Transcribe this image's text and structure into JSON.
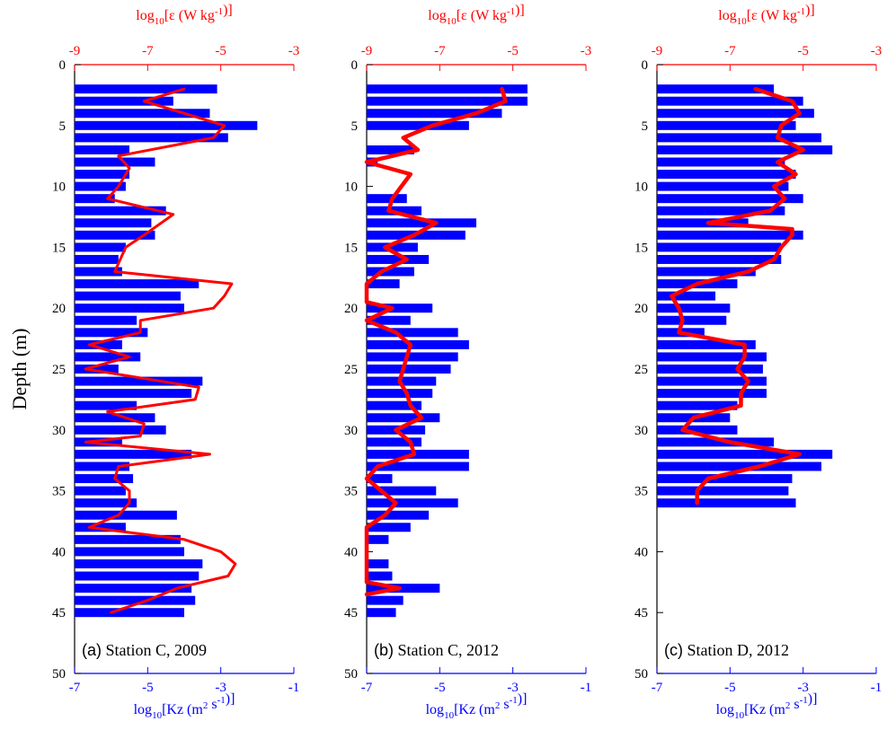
{
  "colors": {
    "kz_bar": "#0000ff",
    "eps_line": "#ff0000",
    "axis": "#000000"
  },
  "chart_data": [
    {
      "type": "bar",
      "panel_label": "(a) Station C, 2009",
      "ylabel": "Depth (m)",
      "ylim": [
        50,
        0
      ],
      "yticks": [
        0,
        5,
        10,
        15,
        20,
        25,
        30,
        35,
        40,
        45,
        50
      ],
      "xlabel_bottom": "log10[Kz (m2 s-1)]",
      "xlabel_top": "log10[ε (W kg-1)]",
      "xlim_bottom": [
        -7,
        -1
      ],
      "xlim_top": [
        -9,
        -3
      ],
      "xticks_bottom": [
        -7,
        -5,
        -3,
        -1
      ],
      "xticks_top": [
        -9,
        -7,
        -5,
        -3
      ],
      "series": [
        {
          "name": "Kz",
          "axis": "bottom",
          "style": "horizontal-bar",
          "depth": [
            2,
            3,
            4,
            5,
            6,
            7,
            8,
            9,
            10,
            11,
            12,
            13,
            14,
            15,
            16,
            17,
            18,
            19,
            20,
            21,
            22,
            23,
            24,
            25,
            26,
            27,
            28,
            29,
            30,
            31,
            32,
            33,
            34,
            35,
            36,
            37,
            38,
            39,
            40,
            41,
            42,
            43,
            44,
            45
          ],
          "values": [
            -3.1,
            -4.3,
            -3.3,
            -2.0,
            -2.8,
            -5.5,
            -4.8,
            -5.5,
            -5.6,
            -5.9,
            -4.5,
            -4.9,
            -4.8,
            -5.6,
            -5.8,
            -5.7,
            -3.6,
            -4.1,
            -4.0,
            -5.3,
            -5.0,
            -5.7,
            -5.2,
            -5.8,
            -3.5,
            -3.8,
            -5.3,
            -4.8,
            -4.5,
            -5.7,
            -3.8,
            -5.5,
            -5.4,
            -5.6,
            -5.3,
            -4.2,
            -5.6,
            -4.1,
            -4.0,
            -3.5,
            -3.6,
            -3.8,
            -3.7,
            -4.0
          ]
        },
        {
          "name": "ε",
          "axis": "top",
          "style": "line",
          "depth": [
            2,
            3,
            5,
            6,
            7.5,
            8.5,
            10,
            11,
            12.3,
            14,
            15,
            17,
            18,
            19,
            20,
            21,
            22,
            23,
            24,
            25,
            26.5,
            27.5,
            28.5,
            29.5,
            30.5,
            31,
            32,
            33,
            34,
            35,
            36,
            37,
            38,
            39,
            40,
            41,
            42,
            43,
            44,
            45
          ],
          "values": [
            -6.0,
            -7.1,
            -4.9,
            -5.2,
            -7.8,
            -7.5,
            -7.8,
            -8.1,
            -6.3,
            -7.1,
            -7.6,
            -7.9,
            -4.7,
            -4.9,
            -5.2,
            -7.2,
            -7.2,
            -8.6,
            -7.5,
            -8.7,
            -5.6,
            -5.7,
            -8.1,
            -7.1,
            -7.2,
            -8.7,
            -5.3,
            -7.8,
            -7.9,
            -7.5,
            -7.5,
            -7.8,
            -8.6,
            -6.0,
            -5.0,
            -4.6,
            -4.8,
            -6.2,
            -7.0,
            -8.0
          ]
        }
      ]
    },
    {
      "type": "bar",
      "panel_label": "(b) Station C, 2012",
      "ylim": [
        50,
        0
      ],
      "yticks": [
        0,
        5,
        10,
        15,
        20,
        25,
        30,
        35,
        40,
        45,
        50
      ],
      "xlabel_bottom": "log10[Kz (m2 s-1)]",
      "xlabel_top": "log10[ε (W kg-1)]",
      "xlim_bottom": [
        -7,
        -1
      ],
      "xlim_top": [
        -9,
        -3
      ],
      "xticks_bottom": [
        -7,
        -5,
        -3,
        -1
      ],
      "xticks_top": [
        -9,
        -7,
        -5,
        -3
      ],
      "series": [
        {
          "name": "Kz",
          "axis": "bottom",
          "style": "horizontal-bar",
          "depth": [
            2,
            3,
            4,
            5,
            7,
            8,
            11,
            12,
            13,
            14,
            15,
            16,
            17,
            18,
            20,
            21,
            22,
            23,
            24,
            25,
            26,
            27,
            28,
            29,
            30,
            31,
            32,
            33,
            34,
            35,
            36,
            37,
            38,
            39,
            41,
            42,
            43,
            44,
            45
          ],
          "values": [
            -2.6,
            -2.6,
            -3.3,
            -4.2,
            -5.7,
            -6.7,
            -5.9,
            -5.5,
            -4.0,
            -4.3,
            -5.6,
            -5.3,
            -5.7,
            -6.1,
            -5.2,
            -5.8,
            -4.5,
            -4.2,
            -4.5,
            -4.7,
            -5.1,
            -5.2,
            -5.5,
            -5.0,
            -5.4,
            -5.5,
            -4.2,
            -4.2,
            -6.3,
            -5.1,
            -4.5,
            -5.3,
            -5.8,
            -6.4,
            -6.4,
            -6.3,
            -5.0,
            -6.0,
            -6.2
          ]
        },
        {
          "name": "ε",
          "axis": "top",
          "style": "line",
          "depth": [
            2,
            3,
            4,
            5,
            6,
            7,
            8,
            9,
            11,
            12,
            13,
            14,
            15,
            16,
            17,
            18,
            19.5,
            20,
            21,
            22,
            23,
            24,
            25,
            26,
            27,
            28,
            29,
            30,
            31,
            32,
            33,
            34,
            35,
            36,
            37,
            38,
            42.5,
            43,
            43.5
          ],
          "values": [
            -5.3,
            -5.2,
            -6.0,
            -7.2,
            -8.0,
            -7.6,
            -9.0,
            -7.8,
            -8.3,
            -8.4,
            -7.1,
            -7.7,
            -8.5,
            -7.9,
            -8.6,
            -9.0,
            -9.0,
            -8.3,
            -9.0,
            -8.2,
            -7.8,
            -7.9,
            -8.0,
            -8.1,
            -7.9,
            -7.8,
            -7.5,
            -8.2,
            -7.8,
            -7.7,
            -8.7,
            -9.0,
            -8.6,
            -8.2,
            -8.5,
            -9.0,
            -9.0,
            -8.1,
            -9.0
          ]
        }
      ]
    },
    {
      "type": "bar",
      "panel_label": "(c) Station D, 2012",
      "ylim": [
        50,
        0
      ],
      "yticks": [
        0,
        5,
        10,
        15,
        20,
        25,
        30,
        35,
        40,
        45,
        50
      ],
      "xlabel_bottom": "log10[Kz (m2 s-1)]",
      "xlabel_top": "log10[ε (W kg-1)]",
      "xlim_bottom": [
        -7,
        -1
      ],
      "xlim_top": [
        -9,
        -3
      ],
      "xticks_bottom": [
        -7,
        -5,
        -3,
        -1
      ],
      "xticks_top": [
        -9,
        -7,
        -5,
        -3
      ],
      "series": [
        {
          "name": "Kz",
          "axis": "bottom",
          "style": "horizontal-bar",
          "depth": [
            2,
            3,
            4,
            5,
            6,
            7,
            8,
            9,
            10,
            11,
            12,
            13,
            14,
            15,
            16,
            17,
            18,
            19,
            20,
            21,
            22,
            23,
            24,
            25,
            26,
            27,
            28,
            29,
            30,
            31,
            32,
            33,
            34,
            35,
            36
          ],
          "values": [
            -3.8,
            -3.0,
            -2.7,
            -3.2,
            -2.5,
            -2.2,
            -3.5,
            -3.2,
            -3.4,
            -3.0,
            -3.5,
            -4.5,
            -3.0,
            -3.6,
            -3.6,
            -4.3,
            -4.8,
            -5.4,
            -5.0,
            -5.1,
            -5.7,
            -4.3,
            -4.0,
            -4.1,
            -4.0,
            -4.0,
            -4.8,
            -5.0,
            -4.8,
            -3.8,
            -2.2,
            -2.5,
            -3.3,
            -3.4,
            -3.2
          ]
        },
        {
          "name": "ε",
          "axis": "top",
          "style": "line",
          "depth": [
            2,
            3,
            4,
            5,
            6,
            7,
            8,
            9,
            10,
            11,
            12,
            13,
            13.5,
            14,
            15,
            16,
            17,
            18,
            19,
            20,
            21,
            22,
            23,
            24,
            25,
            26,
            27,
            28,
            29,
            30,
            31,
            32,
            33,
            34,
            35,
            36
          ],
          "values": [
            -6.3,
            -5.3,
            -5.1,
            -5.6,
            -5.7,
            -5.0,
            -5.7,
            -5.2,
            -5.8,
            -5.5,
            -5.9,
            -7.6,
            -5.3,
            -5.3,
            -5.6,
            -5.8,
            -6.5,
            -7.9,
            -8.6,
            -8.4,
            -8.3,
            -8.4,
            -6.6,
            -6.6,
            -6.8,
            -6.5,
            -6.7,
            -6.7,
            -8.0,
            -8.3,
            -7.0,
            -5.1,
            -6.2,
            -7.6,
            -7.9,
            -7.9
          ]
        }
      ]
    }
  ]
}
